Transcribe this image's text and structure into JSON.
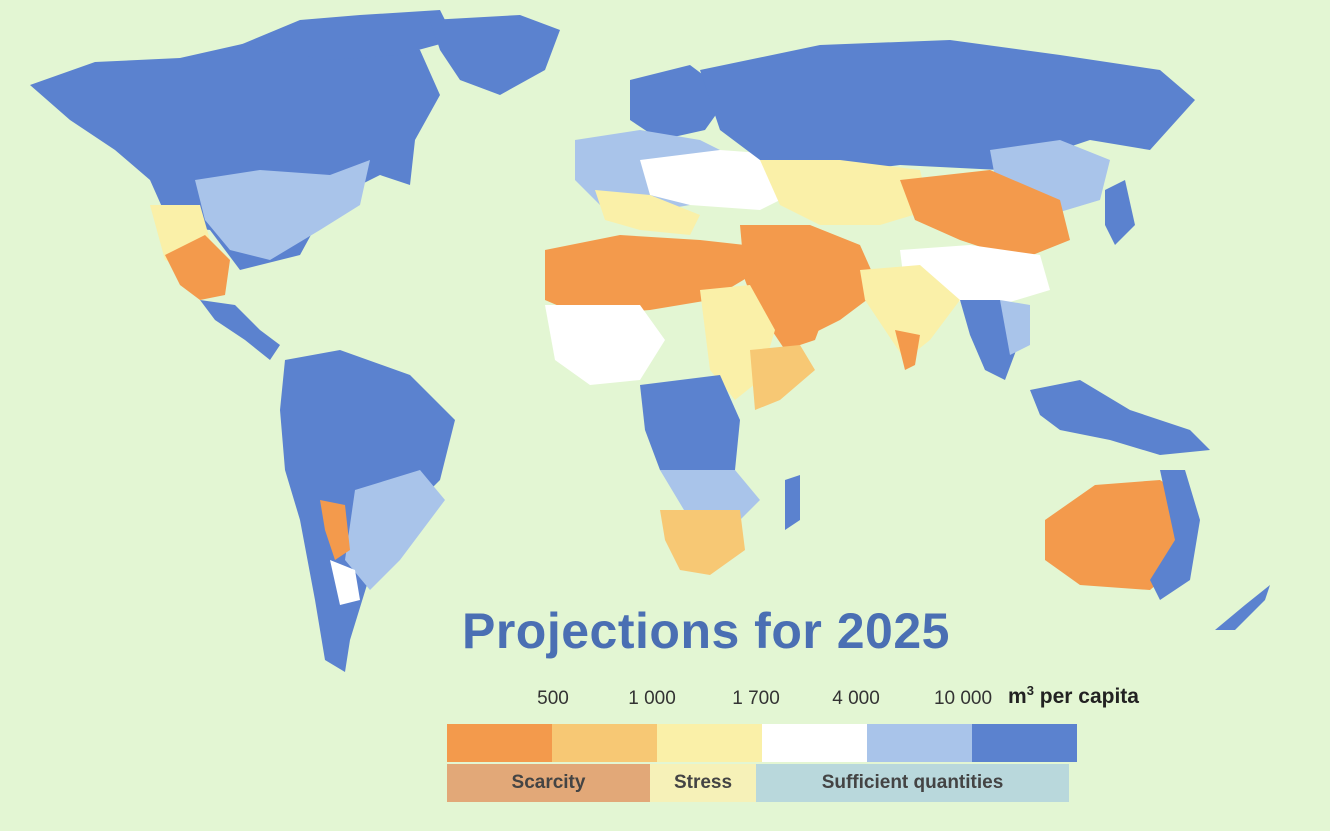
{
  "title": "Projections for 2025",
  "legend": {
    "thresholds": [
      "500",
      "1 000",
      "1 700",
      "4 000",
      "10 000"
    ],
    "unit_main": "m",
    "unit_sup": "3",
    "unit_tail": " per capita",
    "classes": [
      {
        "color": "#f39a4c"
      },
      {
        "color": "#f7c874"
      },
      {
        "color": "#faf0a8"
      },
      {
        "color": "#ffffff"
      },
      {
        "color": "#a9c4ea"
      },
      {
        "color": "#5b82cf"
      }
    ],
    "bands": [
      {
        "label": "Scarcity",
        "color": "#e2a878"
      },
      {
        "label": "Stress",
        "color": "#f6f1b8"
      },
      {
        "label": "Sufficient quantities",
        "color": "#b9d8dc"
      }
    ]
  },
  "colors": {
    "background": "#e3f6d3",
    "scarcity": "#f39a4c",
    "stress_high": "#f7c874",
    "stress": "#faf0a8",
    "moderate": "#ffffff",
    "sufficient": "#a9c4ea",
    "abundant": "#5b82cf",
    "title": "#4a6fb3"
  }
}
